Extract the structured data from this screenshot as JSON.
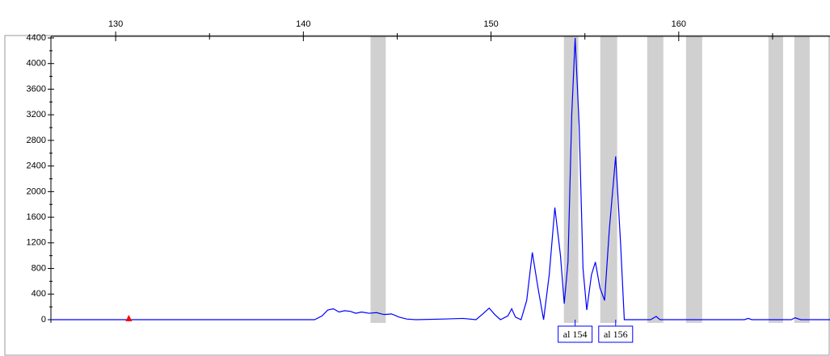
{
  "chart_data": {
    "type": "line",
    "x": [
      126.55,
      140.6,
      141.0,
      141.3,
      141.6,
      141.9,
      142.2,
      142.5,
      142.8,
      143.1,
      143.5,
      143.9,
      144.3,
      144.7,
      145.1,
      145.5,
      146,
      147.5,
      148.5,
      149.2,
      149.6,
      149.9,
      150.2,
      150.5,
      150.9,
      151.1,
      151.3,
      151.6,
      151.9,
      152.2,
      152.5,
      152.8,
      153.1,
      153.4,
      153.7,
      153.9,
      154.1,
      154.3,
      154.48,
      154.7,
      154.9,
      155.1,
      155.35,
      155.56,
      155.8,
      156.05,
      156.3,
      156.64,
      156.9,
      157.1,
      158.5,
      158.8,
      159.0,
      163.5,
      163.7,
      163.9,
      166,
      166.2,
      166.5,
      168.06
    ],
    "series": [
      {
        "color": "#0000ff",
        "values": [
          0,
          0,
          60,
          150,
          170,
          120,
          140,
          130,
          100,
          120,
          100,
          110,
          80,
          90,
          40,
          10,
          0,
          10,
          20,
          0,
          100,
          180,
          80,
          0,
          60,
          170,
          40,
          0,
          300,
          1050,
          500,
          0,
          700,
          1750,
          1000,
          250,
          900,
          3200,
          4400,
          3000,
          800,
          150,
          700,
          900,
          500,
          300,
          1400,
          2550,
          1200,
          0,
          0,
          50,
          0,
          0,
          20,
          0,
          0,
          30,
          0,
          0
        ]
      }
    ],
    "xlim": [
      126.55,
      168.06
    ],
    "ylim": [
      0,
      4400
    ],
    "xticks": [
      130,
      140,
      150,
      160
    ],
    "xminor_ticks": [
      135,
      145,
      155,
      165
    ],
    "yticks": [
      0,
      400,
      800,
      1200,
      1600,
      2000,
      2400,
      2800,
      3200,
      3600,
      4000,
      4400
    ],
    "bin_color": "#c8c8c8",
    "bins": [
      [
        143.58,
        144.39
      ],
      [
        153.88,
        154.65
      ],
      [
        155.82,
        156.72
      ],
      [
        158.32,
        159.18
      ],
      [
        160.39,
        161.25
      ],
      [
        164.78,
        165.56
      ],
      [
        166.16,
        166.98
      ]
    ],
    "marker": {
      "x": 130.7,
      "color": "#ff0000"
    },
    "annotations": [
      {
        "text": "al 154",
        "x": 154.48
      },
      {
        "text": "al 156",
        "x": 156.64
      }
    ]
  }
}
